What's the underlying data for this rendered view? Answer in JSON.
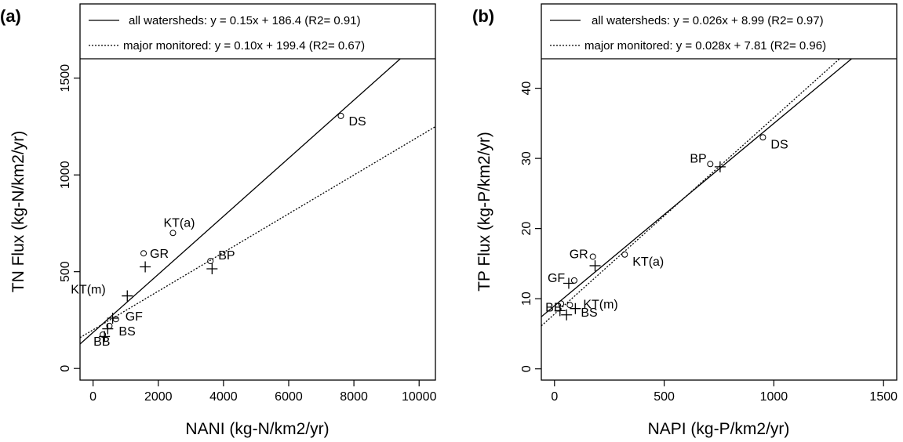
{
  "chart_data": [
    {
      "type": "scatter",
      "panel_label": "(a)",
      "xlabel": "NANI (kg-N/km2/yr)",
      "ylabel": "TN Flux (kg-N/km2/yr)",
      "xlim": [
        -400,
        10500
      ],
      "ylim": [
        -60,
        1600
      ],
      "xticks": [
        0,
        2000,
        4000,
        6000,
        8000,
        10000
      ],
      "yticks": [
        0,
        500,
        1000,
        1500
      ],
      "legend_position": "top, above plot",
      "series": [
        {
          "name": "all watersheds",
          "marker": "circle",
          "points": [
            {
              "label": "DS",
              "x": 7600,
              "y": 1305
            },
            {
              "label": "KT(a)",
              "x": 2450,
              "y": 700
            },
            {
              "label": "GR",
              "x": 1550,
              "y": 595
            },
            {
              "label": "BP",
              "x": 3600,
              "y": 555
            },
            {
              "label": "GF",
              "x": 700,
              "y": 255
            },
            {
              "label": "BS",
              "x": 500,
              "y": 220
            },
            {
              "label": "BB",
              "x": 300,
              "y": 175
            }
          ]
        },
        {
          "name": "major monitored",
          "marker": "plus",
          "points": [
            {
              "label": "GR",
              "x": 1600,
              "y": 525
            },
            {
              "label": "BP",
              "x": 3650,
              "y": 515
            },
            {
              "label": "KT(m)",
              "x": 1050,
              "y": 375
            },
            {
              "label": "GF",
              "x": 600,
              "y": 260
            },
            {
              "label": "BS",
              "x": 450,
              "y": 205
            },
            {
              "label": "BB",
              "x": 350,
              "y": 165
            }
          ]
        }
      ],
      "regressions": [
        {
          "name": "all watersheds",
          "style": "solid",
          "slope": 0.15,
          "intercept": 186.4,
          "legend": "all watersheds: y = 0.15x + 186.4 (R2= 0.91)"
        },
        {
          "name": "major monitored",
          "style": "dotted",
          "slope": 0.1,
          "intercept": 199.4,
          "legend": "major monitored: y = 0.10x + 199.4 (R2= 0.67)"
        }
      ]
    },
    {
      "type": "scatter",
      "panel_label": "(b)",
      "xlabel": "NAPI (kg-P/km2/yr)",
      "ylabel": "TP Flux (kg-P/km2/yr)",
      "xlim": [
        -60,
        1560
      ],
      "ylim": [
        -1.6,
        44.2
      ],
      "xticks": [
        0,
        500,
        1000,
        1500
      ],
      "yticks": [
        0,
        10,
        20,
        30,
        40
      ],
      "legend_position": "top, above plot",
      "series": [
        {
          "name": "all watersheds",
          "marker": "circle",
          "points": [
            {
              "label": "DS",
              "x": 950,
              "y": 33
            },
            {
              "label": "BP",
              "x": 710,
              "y": 29.2
            },
            {
              "label": "KT(a)",
              "x": 320,
              "y": 16.3
            },
            {
              "label": "GR",
              "x": 175,
              "y": 16
            },
            {
              "label": "GF",
              "x": 90,
              "y": 12.6
            },
            {
              "label": "BB",
              "x": 30,
              "y": 9.3
            },
            {
              "label": "BS",
              "x": 70,
              "y": 9.1
            }
          ]
        },
        {
          "name": "major monitored",
          "marker": "plus",
          "points": [
            {
              "label": "BP",
              "x": 755,
              "y": 28.8
            },
            {
              "label": "GR",
              "x": 185,
              "y": 14.7
            },
            {
              "label": "GF",
              "x": 65,
              "y": 12.2
            },
            {
              "label": "KT(m)",
              "x": 95,
              "y": 8.6
            },
            {
              "label": "BB",
              "x": 25,
              "y": 8.3
            },
            {
              "label": "BS",
              "x": 55,
              "y": 7.7
            }
          ]
        }
      ],
      "regressions": [
        {
          "name": "all watersheds",
          "style": "solid",
          "slope": 0.026,
          "intercept": 8.99,
          "legend": "all watersheds: y = 0.026x + 8.99 (R2= 0.97)"
        },
        {
          "name": "major monitored",
          "style": "dotted",
          "slope": 0.028,
          "intercept": 7.81,
          "legend": "major monitored: y = 0.028x + 7.81 (R2= 0.96)"
        }
      ]
    }
  ]
}
